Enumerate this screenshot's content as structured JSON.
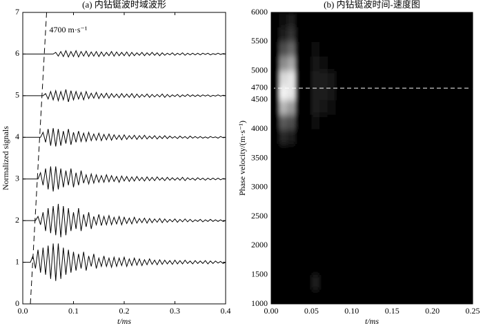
{
  "chart_data": [
    {
      "type": "line",
      "title": "(a) 内钻铤波时域波形",
      "xlabel": "t/ms",
      "ylabel": "Normalized signals",
      "xlim": [
        0,
        0.4
      ],
      "ylim": [
        0,
        7
      ],
      "xticks": [
        {
          "value": 0,
          "label": "0.0"
        },
        0.1,
        0.2,
        0.3,
        0.4
      ],
      "yticks": [
        0,
        1,
        2,
        3,
        4,
        5,
        6,
        7
      ],
      "annotation": {
        "text": "4700 m·s⁻¹",
        "x": [
          0.015,
          0.047
        ],
        "y": [
          0,
          7
        ]
      },
      "x": [
        0,
        0.005,
        0.01,
        0.015,
        0.02,
        0.025,
        0.03,
        0.035,
        0.04,
        0.045,
        0.05,
        0.055,
        0.06,
        0.065,
        0.07,
        0.075,
        0.08,
        0.085,
        0.09,
        0.095,
        0.1,
        0.105,
        0.11,
        0.115,
        0.12,
        0.125,
        0.13,
        0.135,
        0.14,
        0.145,
        0.15,
        0.155,
        0.16,
        0.165,
        0.17,
        0.175,
        0.18,
        0.185,
        0.19,
        0.195,
        0.2,
        0.205,
        0.21,
        0.215,
        0.22,
        0.225,
        0.23,
        0.235,
        0.24,
        0.245,
        0.25,
        0.255,
        0.26,
        0.265,
        0.27,
        0.275,
        0.28,
        0.285,
        0.29,
        0.295,
        0.3,
        0.305,
        0.31,
        0.315,
        0.32,
        0.325,
        0.33,
        0.335,
        0.34,
        0.345,
        0.35,
        0.355,
        0.36,
        0.365,
        0.37,
        0.375,
        0.38,
        0.385,
        0.39,
        0.395,
        0.4
      ],
      "series": [
        {
          "color": "#000000",
          "values": [
            1,
            1,
            1,
            1,
            1.15,
            0.85,
            1.3,
            0.75,
            1.35,
            0.7,
            1.4,
            0.6,
            1.45,
            0.55,
            1.45,
            0.6,
            1.35,
            0.7,
            1.3,
            0.75,
            1.25,
            0.8,
            1.2,
            0.85,
            1.25,
            0.8,
            1.15,
            0.9,
            1.2,
            0.85,
            1.1,
            0.9,
            1.15,
            0.9,
            1.1,
            0.88,
            1.12,
            0.9,
            1.1,
            0.92,
            1.12,
            0.9,
            1.08,
            0.92,
            1.1,
            0.93,
            1.08,
            0.92,
            1.06,
            0.94,
            1.08,
            0.95,
            1.05,
            0.94,
            1.06,
            0.95,
            1.05,
            0.96,
            1.04,
            0.95,
            1.05,
            0.96,
            1.04,
            0.96,
            1.05,
            0.97,
            1.03,
            0.96,
            1.04,
            0.97,
            1.03,
            0.97,
            1.04,
            0.96,
            1.03,
            0.97,
            1.03,
            0.98,
            1.02,
            0.97,
            1
          ]
        },
        {
          "color": "#000000",
          "values": [
            2,
            2,
            2,
            2,
            2,
            2,
            2.1,
            1.9,
            2.2,
            1.75,
            2.3,
            1.7,
            2.35,
            1.65,
            2.4,
            1.6,
            2.35,
            1.65,
            2.3,
            1.75,
            2.2,
            1.8,
            2.3,
            1.75,
            2.15,
            1.85,
            2.2,
            1.8,
            2.1,
            1.9,
            2.15,
            1.88,
            2.1,
            1.9,
            2.12,
            1.9,
            2.08,
            1.92,
            2.1,
            1.9,
            2.08,
            1.93,
            2.06,
            1.92,
            2.08,
            1.94,
            2.05,
            1.95,
            2.06,
            1.94,
            2.05,
            1.95,
            2.04,
            1.96,
            2.05,
            1.95,
            2.04,
            1.96,
            2.03,
            1.97,
            2.04,
            1.96,
            2.03,
            1.97,
            2.04,
            1.97,
            2.03,
            1.97,
            2.02,
            1.98,
            2.03,
            1.97,
            2.02,
            1.98,
            2.03,
            1.98,
            2.02,
            1.98,
            2.02,
            1.98,
            2
          ]
        },
        {
          "color": "#000000",
          "values": [
            3,
            3,
            3,
            3,
            3,
            3,
            3,
            3.15,
            2.85,
            3.25,
            2.75,
            3.3,
            2.7,
            3.3,
            2.75,
            3.25,
            2.8,
            3.2,
            2.85,
            3.25,
            2.8,
            3.15,
            2.85,
            3.2,
            2.9,
            3.1,
            2.88,
            3.12,
            2.9,
            3.1,
            2.92,
            3.08,
            2.92,
            3.1,
            2.93,
            3.08,
            2.94,
            3.06,
            2.92,
            3.07,
            2.95,
            3.06,
            2.94,
            3.05,
            2.95,
            3.06,
            2.96,
            3.04,
            2.95,
            3.05,
            2.96,
            3.04,
            2.96,
            3.05,
            2.97,
            3.03,
            2.96,
            3.04,
            2.97,
            3.03,
            2.97,
            3.03,
            2.97,
            3.04,
            2.96,
            3.03,
            2.98,
            3.02,
            2.97,
            3.03,
            2.98,
            3.02,
            2.97,
            3.02,
            2.98,
            3.02,
            2.98,
            3.02,
            2.98,
            3.01,
            3
          ]
        },
        {
          "color": "#000000",
          "values": [
            4,
            4,
            4,
            4,
            4,
            4,
            4,
            4,
            4.12,
            3.88,
            4.2,
            3.8,
            4.22,
            3.78,
            4.2,
            3.8,
            4.15,
            3.85,
            4.2,
            3.82,
            4.12,
            3.88,
            4.15,
            3.9,
            4.1,
            3.9,
            4.12,
            3.92,
            4.08,
            3.93,
            4.1,
            3.92,
            4.07,
            3.94,
            4.08,
            3.93,
            4.06,
            3.95,
            4.05,
            3.94,
            4.06,
            3.95,
            4.04,
            3.96,
            4.05,
            3.95,
            4.04,
            3.96,
            4.05,
            3.96,
            4.03,
            3.97,
            4.04,
            3.96,
            4.03,
            3.97,
            4.04,
            3.97,
            4.03,
            3.98,
            4.02,
            3.97,
            4.03,
            3.98,
            4.02,
            3.97,
            4.03,
            3.98,
            4.02,
            3.98,
            4.02,
            3.98,
            4.01,
            3.98,
            4.02,
            3.99,
            4.01,
            3.98,
            4.02,
            3.99,
            4
          ]
        },
        {
          "color": "#000000",
          "values": [
            5,
            5,
            5,
            5,
            5,
            5,
            5,
            5,
            5,
            5.05,
            4.92,
            5.1,
            4.9,
            5.12,
            4.88,
            5.1,
            4.9,
            5.15,
            4.85,
            5.12,
            4.9,
            5.1,
            4.92,
            5.08,
            4.9,
            5.1,
            4.93,
            5.06,
            4.94,
            5.08,
            4.93,
            5.05,
            4.95,
            5.06,
            4.94,
            5.05,
            4.96,
            5.04,
            4.95,
            5.05,
            4.96,
            5.04,
            4.96,
            5.05,
            4.95,
            5.04,
            4.96,
            5.03,
            4.97,
            5.04,
            4.96,
            5.03,
            4.97,
            5.03,
            4.97,
            5.04,
            4.96,
            5.03,
            4.97,
            5.02,
            4.98,
            5.03,
            4.97,
            5.02,
            4.98,
            5.03,
            4.98,
            5.02,
            4.98,
            5.02,
            4.98,
            5.02,
            4.99,
            5.02,
            4.98,
            5.01,
            4.99,
            5.02,
            4.99,
            5.01,
            5
          ]
        },
        {
          "color": "#000000",
          "values": [
            6,
            6,
            6,
            6,
            6,
            6,
            6,
            6,
            6,
            6,
            6,
            6,
            6,
            6.04,
            5.95,
            6.06,
            5.94,
            6.08,
            5.93,
            6.06,
            5.94,
            6.08,
            5.93,
            6.06,
            5.95,
            6.07,
            5.94,
            6.05,
            5.95,
            6.06,
            5.94,
            6.05,
            5.95,
            6.04,
            5.96,
            6.06,
            5.95,
            6.05,
            5.96,
            6.04,
            5.96,
            6.05,
            5.95,
            6.04,
            5.96,
            6.03,
            5.97,
            6.04,
            5.96,
            6.03,
            5.97,
            6.04,
            5.97,
            6.03,
            5.96,
            6.03,
            5.97,
            6.02,
            5.98,
            6.03,
            5.97,
            6.02,
            5.98,
            6.03,
            5.97,
            6.02,
            5.98,
            6.02,
            5.98,
            6.02,
            5.98,
            6.02,
            5.99,
            6.02,
            5.98,
            6.01,
            5.99,
            6.02,
            5.99,
            6.01,
            6
          ]
        }
      ]
    },
    {
      "type": "heatmap",
      "title": "(b) 内钻铤波时间-速度图",
      "xlabel": "t/ms",
      "ylabel": "Phase velocity/(m·s⁻¹)",
      "xlim": [
        0,
        0.25
      ],
      "ylim": [
        1000,
        6000
      ],
      "xticks": [
        {
          "value": 0,
          "label": "0.00"
        },
        {
          "value": 0.05,
          "label": "0.05"
        },
        {
          "value": 0.1,
          "label": "0.10"
        },
        {
          "value": 0.15,
          "label": "0.15"
        },
        {
          "value": 0.2,
          "label": "0.20"
        },
        {
          "value": 0.25,
          "label": "0.25"
        }
      ],
      "yticks": [
        1000,
        1500,
        2000,
        2500,
        3000,
        3500,
        4000,
        4500,
        4700,
        5000,
        5500,
        6000
      ],
      "hline": 4700,
      "x": [
        0.005,
        0.015,
        0.025,
        0.035,
        0.045,
        0.055,
        0.065,
        0.075,
        0.085,
        0.095,
        0.105,
        0.115,
        0.125,
        0.135,
        0.145,
        0.155,
        0.165,
        0.175,
        0.185,
        0.195,
        0.205,
        0.215,
        0.225,
        0.235,
        0.245
      ],
      "y": [
        1125,
        1375,
        1625,
        1875,
        2125,
        2375,
        2625,
        2875,
        3125,
        3375,
        3625,
        3875,
        4125,
        4375,
        4625,
        4875,
        5125,
        5375,
        5625,
        5875
      ],
      "z": [
        [
          0,
          0,
          0,
          0,
          0,
          0,
          0,
          0,
          0,
          0,
          0,
          0,
          0,
          0,
          0,
          0,
          0,
          0,
          0,
          0,
          0,
          0,
          0,
          0,
          0
        ],
        [
          0,
          0,
          0,
          0,
          0,
          0.12,
          0,
          0,
          0,
          0,
          0,
          0,
          0,
          0,
          0,
          0,
          0,
          0,
          0,
          0,
          0,
          0,
          0,
          0,
          0
        ],
        [
          0,
          0,
          0,
          0,
          0,
          0,
          0,
          0,
          0,
          0,
          0,
          0,
          0,
          0,
          0,
          0,
          0,
          0,
          0,
          0,
          0,
          0,
          0,
          0,
          0
        ],
        [
          0,
          0,
          0,
          0,
          0,
          0,
          0,
          0,
          0,
          0,
          0,
          0,
          0,
          0,
          0,
          0,
          0,
          0,
          0,
          0,
          0,
          0,
          0,
          0,
          0
        ],
        [
          0,
          0,
          0,
          0,
          0,
          0,
          0,
          0,
          0,
          0,
          0,
          0,
          0,
          0,
          0,
          0,
          0,
          0,
          0,
          0,
          0,
          0,
          0,
          0,
          0
        ],
        [
          0,
          0,
          0,
          0,
          0,
          0,
          0,
          0,
          0,
          0,
          0,
          0,
          0,
          0,
          0,
          0,
          0,
          0,
          0,
          0,
          0,
          0,
          0,
          0,
          0
        ],
        [
          0,
          0,
          0,
          0,
          0,
          0,
          0,
          0,
          0,
          0,
          0,
          0,
          0,
          0,
          0,
          0,
          0,
          0,
          0,
          0,
          0,
          0,
          0,
          0,
          0
        ],
        [
          0,
          0,
          0,
          0,
          0,
          0,
          0,
          0,
          0,
          0,
          0,
          0,
          0,
          0,
          0,
          0,
          0,
          0,
          0,
          0,
          0,
          0,
          0,
          0,
          0
        ],
        [
          0,
          0,
          0,
          0,
          0,
          0,
          0,
          0,
          0,
          0,
          0,
          0,
          0,
          0,
          0,
          0,
          0,
          0,
          0,
          0,
          0,
          0,
          0,
          0,
          0
        ],
        [
          0,
          0,
          0,
          0,
          0,
          0,
          0,
          0,
          0,
          0,
          0,
          0,
          0,
          0,
          0,
          0,
          0,
          0,
          0,
          0,
          0,
          0,
          0,
          0,
          0
        ],
        [
          0,
          0,
          0,
          0,
          0,
          0,
          0,
          0,
          0,
          0,
          0,
          0,
          0,
          0,
          0,
          0,
          0,
          0,
          0,
          0,
          0,
          0,
          0,
          0,
          0
        ],
        [
          0,
          0.15,
          0.1,
          0,
          0,
          0,
          0,
          0,
          0,
          0,
          0,
          0,
          0,
          0,
          0,
          0,
          0,
          0,
          0,
          0,
          0,
          0,
          0,
          0,
          0
        ],
        [
          0,
          0.35,
          0.3,
          0,
          0,
          0.05,
          0,
          0,
          0,
          0,
          0,
          0,
          0,
          0,
          0,
          0,
          0,
          0,
          0,
          0,
          0,
          0,
          0,
          0,
          0
        ],
        [
          0,
          0.7,
          0.6,
          0,
          0,
          0.1,
          0.08,
          0.06,
          0,
          0,
          0,
          0,
          0,
          0,
          0,
          0,
          0,
          0,
          0,
          0,
          0,
          0,
          0,
          0,
          0
        ],
        [
          0,
          0.95,
          0.9,
          0,
          0,
          0.12,
          0.1,
          0.08,
          0,
          0,
          0,
          0,
          0,
          0,
          0,
          0,
          0,
          0,
          0,
          0,
          0,
          0,
          0,
          0,
          0
        ],
        [
          0,
          0.85,
          0.9,
          0,
          0,
          0.1,
          0.1,
          0.07,
          0,
          0,
          0,
          0,
          0,
          0,
          0,
          0,
          0,
          0,
          0,
          0,
          0,
          0,
          0,
          0,
          0
        ],
        [
          0,
          0.55,
          0.65,
          0,
          0,
          0.07,
          0.06,
          0,
          0,
          0,
          0,
          0,
          0,
          0,
          0,
          0,
          0,
          0,
          0,
          0,
          0,
          0,
          0,
          0,
          0
        ],
        [
          0,
          0.3,
          0.4,
          0,
          0,
          0.04,
          0,
          0,
          0,
          0,
          0,
          0,
          0,
          0,
          0,
          0,
          0,
          0,
          0,
          0,
          0,
          0,
          0,
          0,
          0
        ],
        [
          0,
          0.12,
          0.2,
          0,
          0,
          0,
          0,
          0,
          0,
          0,
          0,
          0,
          0,
          0,
          0,
          0,
          0,
          0,
          0,
          0,
          0,
          0,
          0,
          0,
          0
        ],
        [
          0,
          0.05,
          0.1,
          0,
          0,
          0,
          0,
          0,
          0,
          0,
          0,
          0,
          0,
          0,
          0,
          0,
          0,
          0,
          0,
          0,
          0,
          0,
          0,
          0,
          0
        ]
      ]
    }
  ]
}
